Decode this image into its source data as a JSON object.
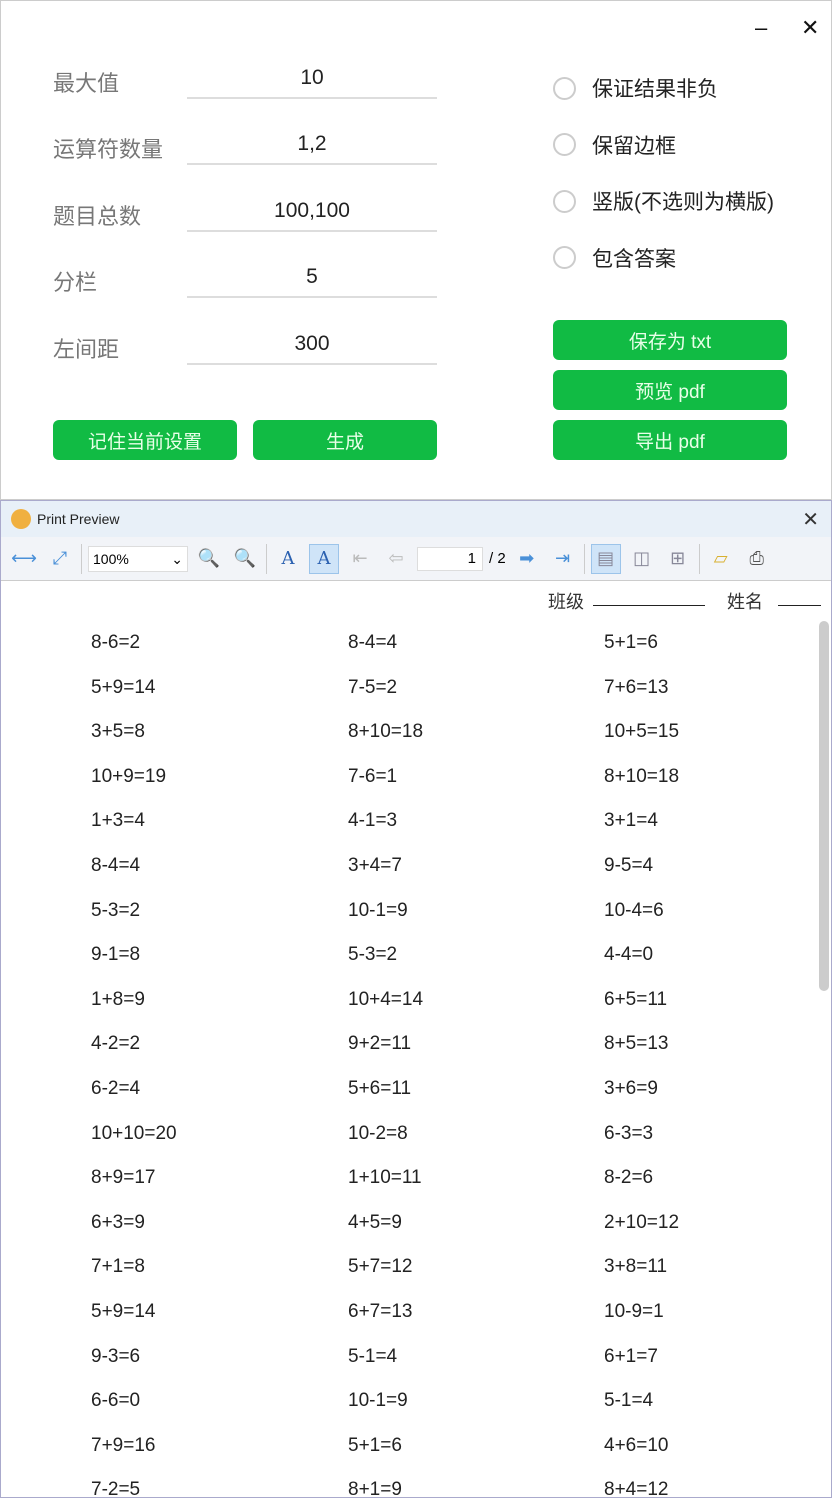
{
  "window": {
    "minimize": "–",
    "close": "✕"
  },
  "settings": [
    {
      "label": "最大值",
      "value": "10"
    },
    {
      "label": "运算符数量",
      "value": "1,2"
    },
    {
      "label": "题目总数",
      "value": "100,100"
    },
    {
      "label": "分栏",
      "value": "5"
    },
    {
      "label": "左间距",
      "value": "300"
    }
  ],
  "options": [
    "保证结果非负",
    "保留边框",
    "竖版(不选则为横版)",
    "包含答案"
  ],
  "buttons": {
    "remember": "记住当前设置",
    "generate": "生成",
    "save_txt": "保存为 txt",
    "preview_pdf": "预览 pdf",
    "export_pdf": "导出 pdf"
  },
  "colors": {
    "accent": "#11bb44"
  },
  "preview": {
    "title": "Print Preview",
    "close": "✕",
    "zoom": "100%",
    "page": "1",
    "total": "/ 2",
    "class_label": "班级",
    "name_label": "姓名"
  },
  "problems": [
    [
      "8-6=2",
      "8-4=4",
      "5+1=6"
    ],
    [
      "5+9=14",
      "7-5=2",
      "7+6=13"
    ],
    [
      "3+5=8",
      "8+10=18",
      "10+5=15"
    ],
    [
      "10+9=19",
      "7-6=1",
      "8+10=18"
    ],
    [
      "1+3=4",
      "4-1=3",
      "3+1=4"
    ],
    [
      "8-4=4",
      "3+4=7",
      "9-5=4"
    ],
    [
      "5-3=2",
      "10-1=9",
      "10-4=6"
    ],
    [
      "9-1=8",
      "5-3=2",
      "4-4=0"
    ],
    [
      "1+8=9",
      "10+4=14",
      "6+5=11"
    ],
    [
      "4-2=2",
      "9+2=11",
      "8+5=13"
    ],
    [
      "6-2=4",
      "5+6=11",
      "3+6=9"
    ],
    [
      "10+10=20",
      "10-2=8",
      "6-3=3"
    ],
    [
      "8+9=17",
      "1+10=11",
      "8-2=6"
    ],
    [
      "6+3=9",
      "4+5=9",
      "2+10=12"
    ],
    [
      "7+1=8",
      "5+7=12",
      "3+8=11"
    ],
    [
      "5+9=14",
      "6+7=13",
      "10-9=1"
    ],
    [
      "9-3=6",
      "5-1=4",
      "6+1=7"
    ],
    [
      "6-6=0",
      "10-1=9",
      "5-1=4"
    ],
    [
      "7+9=16",
      "5+1=6",
      "4+6=10"
    ],
    [
      "7-2=5",
      "8+1=9",
      "8+4=12"
    ]
  ]
}
